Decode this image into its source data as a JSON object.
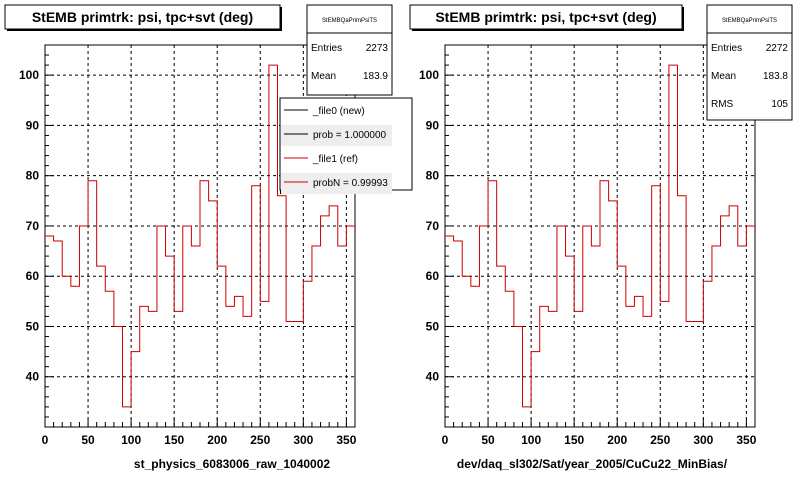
{
  "chart_data": [
    {
      "type": "line",
      "title": "StEMB primtrk: psi, tpc+svt (deg)",
      "xlabel": "st_physics_6083006_raw_1040002",
      "ylabel": "",
      "xlim": [
        0,
        360
      ],
      "ylim": [
        30,
        106
      ],
      "grid": true,
      "x_ticks": [
        0,
        50,
        100,
        150,
        200,
        250,
        300,
        350
      ],
      "y_ticks": [
        40,
        50,
        60,
        70,
        80,
        90,
        100
      ],
      "bin_width": 10,
      "stats": {
        "header": "StEMBQaPrimPsiTS",
        "rows": [
          {
            "label": "Entries",
            "value": "2273"
          },
          {
            "label": "Mean",
            "value": "183.9"
          }
        ]
      },
      "legend": {
        "placement": "top-right",
        "entries": [
          {
            "label": "_file0 (new)",
            "color": "#000000"
          },
          {
            "label": "prob = 1.000000",
            "color": "#000000"
          },
          {
            "label": "_file1 (ref)",
            "color": "#cc0000"
          },
          {
            "label": "probN = 0.99993",
            "color": "#cc0000"
          }
        ]
      },
      "series": [
        {
          "color": "#cc0000",
          "values": [
            68,
            67,
            60,
            58,
            70,
            79,
            62,
            57,
            50,
            34,
            45,
            54,
            53,
            70,
            64,
            53,
            70,
            66,
            79,
            75,
            62,
            54,
            56,
            52,
            78,
            55,
            102,
            76,
            51,
            51,
            59,
            66,
            72,
            74,
            66,
            70
          ]
        }
      ]
    },
    {
      "type": "line",
      "title": "StEMB primtrk: psi, tpc+svt (deg)",
      "xlabel": "dev/daq_sl302/Sat/year_2005/CuCu22_MinBias/",
      "ylabel": "",
      "xlim": [
        0,
        360
      ],
      "ylim": [
        30,
        106
      ],
      "grid": true,
      "x_ticks": [
        0,
        50,
        100,
        150,
        200,
        250,
        300,
        350
      ],
      "y_ticks": [
        40,
        50,
        60,
        70,
        80,
        90,
        100
      ],
      "bin_width": 10,
      "stats": {
        "header": "StEMBQaPrimPsiTS",
        "rows": [
          {
            "label": "Entries",
            "value": "2272"
          },
          {
            "label": "Mean",
            "value": "183.8"
          },
          {
            "label": "RMS",
            "value": "105"
          }
        ]
      },
      "series": [
        {
          "color": "#cc0000",
          "values": [
            68,
            67,
            60,
            58,
            70,
            79,
            62,
            57,
            50,
            34,
            45,
            54,
            53,
            70,
            64,
            53,
            70,
            66,
            79,
            75,
            62,
            54,
            56,
            52,
            78,
            55,
            102,
            76,
            51,
            51,
            59,
            66,
            72,
            74,
            66,
            70
          ]
        }
      ]
    }
  ]
}
